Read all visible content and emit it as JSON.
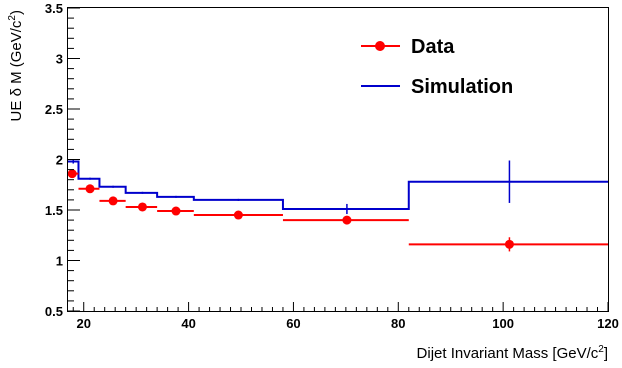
{
  "chart_data": {
    "type": "step-with-errors",
    "title": "",
    "xlabel": {
      "main": "Dijet Invariant Mass [GeV/c",
      "sup": "2",
      "tail": "]"
    },
    "ylabel": {
      "main": "UE δ M (GeV/c",
      "sup": "2",
      "tail": ")"
    },
    "xlim": [
      17,
      120
    ],
    "ylim": [
      0.5,
      3.5
    ],
    "xticks": [
      20,
      40,
      60,
      80,
      100,
      120
    ],
    "yticks": [
      0.5,
      1,
      1.5,
      2,
      2.5,
      3,
      3.5
    ],
    "xtick_labels": [
      "20",
      "40",
      "60",
      "80",
      "100",
      "120"
    ],
    "ytick_labels": [
      "0.5",
      "1",
      "1.5",
      "2",
      "2.5",
      "3",
      "3.5"
    ],
    "grid": false,
    "legend_position": "top-right",
    "series": [
      {
        "name": "Data",
        "color": "#ff0000",
        "style": "markers-with-xerror",
        "points": [
          {
            "x": 17.8,
            "xlo": 17,
            "xhi": 19,
            "y": 1.86,
            "yerr": 0.02
          },
          {
            "x": 21.2,
            "xlo": 19,
            "xhi": 23,
            "y": 1.71,
            "yerr": 0.015
          },
          {
            "x": 25.6,
            "xlo": 23,
            "xhi": 28,
            "y": 1.59,
            "yerr": 0.015
          },
          {
            "x": 31.2,
            "xlo": 28,
            "xhi": 34,
            "y": 1.53,
            "yerr": 0.015
          },
          {
            "x": 37.6,
            "xlo": 34,
            "xhi": 41,
            "y": 1.49,
            "yerr": 0.015
          },
          {
            "x": 49.5,
            "xlo": 41,
            "xhi": 58,
            "y": 1.45,
            "yerr": 0.015
          },
          {
            "x": 70.2,
            "xlo": 58,
            "xhi": 82,
            "y": 1.4,
            "yerr": 0.03
          },
          {
            "x": 101.2,
            "xlo": 82,
            "xhi": 120,
            "y": 1.16,
            "yerr": 0.07
          }
        ]
      },
      {
        "name": "Simulation",
        "color": "#0000cc",
        "style": "step",
        "bins": [
          {
            "lo": 17,
            "hi": 19,
            "y": 1.98,
            "yerr": 0.02,
            "xc": 18.0
          },
          {
            "lo": 19,
            "hi": 23,
            "y": 1.81,
            "yerr": 0.01,
            "xc": 21.2
          },
          {
            "lo": 23,
            "hi": 28,
            "y": 1.73,
            "yerr": 0.01,
            "xc": 25.6
          },
          {
            "lo": 28,
            "hi": 34,
            "y": 1.67,
            "yerr": 0.01,
            "xc": 31.2
          },
          {
            "lo": 34,
            "hi": 41,
            "y": 1.63,
            "yerr": 0.01,
            "xc": 37.6
          },
          {
            "lo": 41,
            "hi": 58,
            "y": 1.6,
            "yerr": 0.01,
            "xc": 49.5
          },
          {
            "lo": 58,
            "hi": 82,
            "y": 1.51,
            "yerr": 0.05,
            "xc": 70.2
          },
          {
            "lo": 82,
            "hi": 120,
            "y": 1.78,
            "yerr": 0.21,
            "xc": 101.2
          }
        ]
      }
    ]
  }
}
